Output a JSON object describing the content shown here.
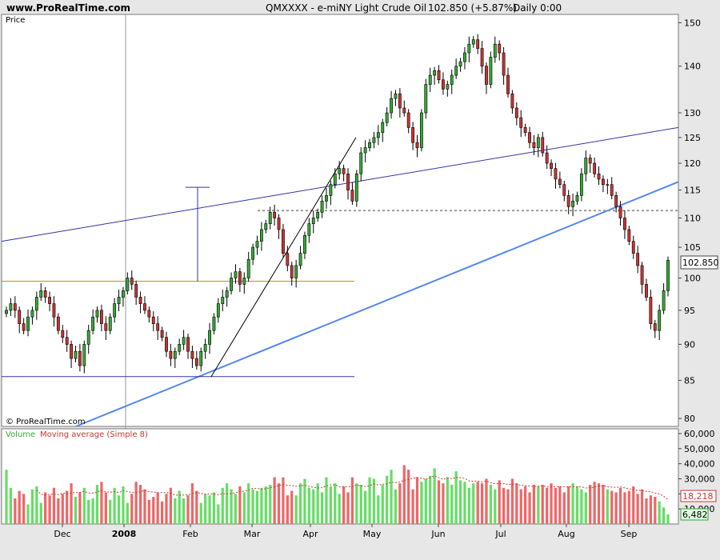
{
  "header": {
    "site": "www.ProRealTime.com",
    "symbol_title": "QMXXXX - e-miNY Light Crude Oil",
    "last": "102.850 (+5.87%)",
    "period": "Daily  0:00"
  },
  "copyright": "© ProRealTime.com",
  "price_panel": {
    "label": "Price",
    "last_price_label": "102.850",
    "y_ticks": [
      80,
      85,
      90,
      95,
      100,
      105,
      110,
      115,
      120,
      125,
      130,
      140,
      150
    ],
    "scale": "log"
  },
  "volume_panel": {
    "label_volume": "Volume",
    "label_ma": "Moving average (Simple 8)",
    "y_ticks": [
      "60,000",
      "50,000",
      "40,000",
      "30,000",
      "20,000",
      "10,000"
    ],
    "ma_value_label": "18,218",
    "volume_value_label": "6,482"
  },
  "x_ticks": [
    "Dec",
    "2008",
    "Feb",
    "Mar",
    "Apr",
    "May",
    "Jun",
    "Jul",
    "Aug",
    "Sep"
  ],
  "colors": {
    "up": "#33aa33",
    "down": "#cc3333",
    "volume_up": "#66dd66",
    "volume_down": "#ee6666",
    "trend_dark": "#3333aa",
    "trend_light": "#5588ee",
    "support": "#dd8800",
    "ma": "#cc3333"
  },
  "chart_data": {
    "type": "candlestick",
    "title": "QMXXXX - e-miNY Light Crude Oil",
    "ylabel": "Price",
    "ylim": [
      79,
      152
    ],
    "series": [
      {
        "name": "Price (daily close, approx.)",
        "values": [
          95,
          96,
          95,
          93,
          92,
          94,
          95,
          97,
          98,
          97,
          96,
          94,
          92,
          91,
          90,
          88,
          89,
          87,
          90,
          92,
          94,
          95,
          93,
          92,
          94,
          96,
          97,
          98,
          100,
          99,
          97,
          96,
          95,
          94,
          93,
          92,
          91,
          89,
          88,
          89,
          90,
          91,
          89,
          88,
          87,
          89,
          90,
          92,
          94,
          96,
          97,
          98,
          100,
          101,
          99,
          100,
          103,
          105,
          106,
          108,
          109,
          111,
          110,
          108,
          104,
          102,
          100,
          102,
          104,
          107,
          109,
          110,
          111,
          113,
          114,
          116,
          118,
          119,
          118,
          115,
          113,
          118,
          122,
          123,
          124,
          125,
          126,
          128,
          130,
          133,
          134,
          131,
          130,
          127,
          124,
          123,
          130,
          136,
          138,
          139,
          137,
          135,
          136,
          138,
          140,
          141,
          143,
          145,
          146,
          144,
          140,
          136,
          142,
          145,
          143,
          138,
          134,
          131,
          129,
          127,
          126,
          124,
          123,
          125,
          122,
          120,
          119,
          117,
          116,
          114,
          112,
          113,
          114,
          118,
          121,
          120,
          118,
          117,
          116,
          116,
          114,
          112,
          110,
          108,
          106,
          104,
          102,
          99,
          97,
          93,
          92,
          95,
          98,
          102.85
        ]
      },
      {
        "name": "Volume (approx.)",
        "values": [
          36000,
          24000,
          17000,
          22000,
          20000,
          13000,
          23000,
          25000,
          14000,
          21000,
          19000,
          24000,
          17000,
          20000,
          22000,
          27000,
          18000,
          21000,
          24000,
          16000,
          17000,
          26000,
          28000,
          21000,
          16000,
          24000,
          19000,
          25000,
          14000,
          20000,
          28000,
          26000,
          23000,
          16000,
          18000,
          21000,
          15000,
          20000,
          24000,
          17000,
          22000,
          17000,
          19000,
          27000,
          22000,
          14000,
          20000,
          19000,
          21000,
          13000,
          24000,
          27000,
          23000,
          20000,
          25000,
          21000,
          27000,
          23000,
          22000,
          24000,
          25000,
          26000,
          31000,
          27000,
          31000,
          19000,
          22000,
          19000,
          27000,
          30000,
          24000,
          23000,
          27000,
          21000,
          31000,
          25000,
          27000,
          20000,
          25000,
          21000,
          31000,
          27000,
          26000,
          22000,
          31000,
          30000,
          19000,
          26000,
          32000,
          36000,
          23000,
          27000,
          39000,
          36000,
          23000,
          31000,
          28000,
          30000,
          32000,
          37000,
          29000,
          27000,
          31000,
          26000,
          35000,
          29000,
          28000,
          24000,
          27000,
          28000,
          27000,
          30000,
          26000,
          23000,
          29000,
          24000,
          23000,
          30000,
          27000,
          23000,
          25000,
          21000,
          26000,
          25000,
          26000,
          24000,
          27000,
          24000,
          25000,
          21000,
          25000,
          27000,
          25000,
          23000,
          21000,
          26000,
          28000,
          27000,
          26000,
          23000,
          22000,
          21000,
          24000,
          21000,
          22000,
          25000,
          20000,
          23000,
          17000,
          19000,
          18000,
          15000,
          11000,
          6482
        ]
      }
    ]
  }
}
